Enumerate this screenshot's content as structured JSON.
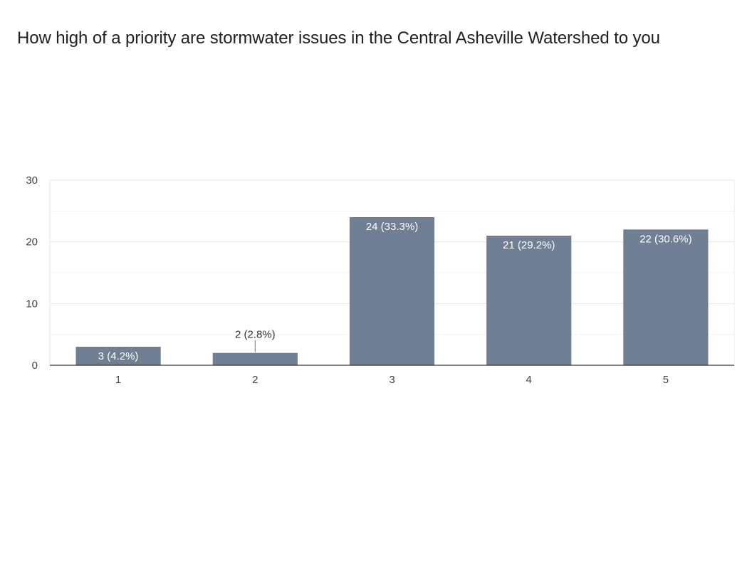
{
  "chart_data": {
    "type": "bar",
    "title": "How high of a priority are stormwater issues in the Central Asheville Watershed to you",
    "categories": [
      "1",
      "2",
      "3",
      "4",
      "5"
    ],
    "values": [
      3,
      2,
      24,
      21,
      22
    ],
    "data_labels": [
      "3 (4.2%)",
      "2 (2.8%)",
      "24 (33.3%)",
      "21 (29.2%)",
      "22 (30.6%)"
    ],
    "ylim": [
      0,
      30
    ],
    "yticks": [
      0,
      10,
      20,
      30
    ],
    "xlabel": "",
    "ylabel": "",
    "grid": true,
    "bar_color": "#717f95"
  }
}
